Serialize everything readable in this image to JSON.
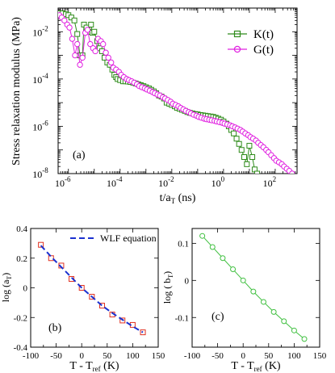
{
  "chart_data": [
    {
      "type": "scatter",
      "panel_label": "(a)",
      "xlabel_main": "t/a",
      "xlabel_sub": "T",
      "xlabel_unit": " (ns)",
      "ylabel": "Stress relaxation modulus (MPa)",
      "xscale": "log",
      "yscale": "log",
      "xlim": [
        4e-07,
        700
      ],
      "ylim": [
        1e-08,
        0.1
      ],
      "xticks": [
        1e-06,
        0.0001,
        0.01,
        1,
        100
      ],
      "xtick_base": [
        "10",
        "10",
        "10",
        "10",
        "10"
      ],
      "xtick_exp": [
        "-6",
        "-4",
        "-2",
        "0",
        "2"
      ],
      "yticks": [
        1e-08,
        1e-06,
        0.0001,
        0.01
      ],
      "ytick_base": [
        "10",
        "10",
        "10",
        "10"
      ],
      "ytick_exp": [
        "-8",
        "-6",
        "-4",
        "-2"
      ],
      "legend_position": "top-right",
      "series": [
        {
          "name": "K(t)",
          "color": "#2e8b1a",
          "marker": "square",
          "x": [
            4.5e-07,
            6e-07,
            8e-07,
            1e-06,
            1.3e-06,
            1.7e-06,
            2.2e-06,
            2.8e-06,
            3.5e-06,
            4e-06,
            5e-06,
            6e-06,
            7.5e-06,
            8.5e-06,
            1e-05,
            1.3e-05,
            1.6e-05,
            2e-05,
            2.5e-05,
            3.2e-05,
            4e-05,
            5e-05,
            6e-05,
            7e-05,
            8e-05,
            0.0001,
            0.00013,
            0.00016,
            0.0002,
            0.00025,
            0.00032,
            0.0004,
            0.0005,
            0.00063,
            0.0008,
            0.001,
            0.0013,
            0.0016,
            0.002,
            0.0025,
            0.0032,
            0.004,
            0.005,
            0.0063,
            0.008,
            0.01,
            0.013,
            0.016,
            0.02,
            0.025,
            0.032,
            0.04,
            0.05,
            0.063,
            0.08,
            0.1,
            0.13,
            0.16,
            0.2,
            0.25,
            0.32,
            0.4,
            0.5,
            0.63,
            0.8,
            1,
            1.3,
            1.6,
            2,
            2.5,
            3.2,
            4,
            5,
            6.3,
            8,
            10,
            13,
            16,
            20
          ],
          "y": [
            0.06,
            0.06,
            0.055,
            0.05,
            0.04,
            0.03,
            0.008,
            0.001,
            0.001,
            0.02,
            0.015,
            0.01,
            0.02,
            0.009,
            0.01,
            0.004,
            0.002,
            0.0015,
            0.0008,
            0.0005,
            0.0004,
            0.00025,
            0.00015,
            0.00012,
            0.0001,
            9e-05,
            8e-05,
            8e-05,
            7.8e-05,
            7.5e-05,
            7e-05,
            6.5e-05,
            6e-05,
            5.5e-05,
            5e-05,
            4.5e-05,
            4e-05,
            3.5e-05,
            3e-05,
            2.5e-05,
            2e-05,
            1.8e-05,
            1.5e-05,
            1e-05,
            9e-06,
            8e-06,
            7e-06,
            6e-06,
            5.5e-06,
            5e-06,
            4.5e-06,
            4e-06,
            3.7e-06,
            3.5e-06,
            3.3e-06,
            3.2e-06,
            3e-06,
            2.9e-06,
            2.8e-06,
            2.7e-06,
            2.6e-06,
            2.5e-06,
            2.3e-06,
            2.1e-06,
            1.9e-06,
            1.6e-06,
            1.3e-06,
            1e-06,
            7e-07,
            5e-07,
            3e-07,
            1.8e-07,
            1e-07,
            5e-08,
            2.5e-08,
            1.5e-07,
            5e-08,
            1.5e-08,
            1e-08
          ]
        },
        {
          "name": "G(t)",
          "color": "#e020e0",
          "marker": "circle",
          "x": [
            4.5e-07,
            5.5e-07,
            7e-07,
            9e-07,
            1.1e-06,
            1.4e-06,
            1.8e-06,
            2.2e-06,
            2.8e-06,
            3.5e-06,
            4.5e-06,
            5.5e-06,
            7e-06,
            9e-06,
            1.1e-05,
            1.4e-05,
            1.8e-05,
            2.2e-05,
            2.8e-05,
            3.5e-05,
            4.5e-05,
            5.5e-05,
            7e-05,
            9e-05,
            0.00011,
            0.00014,
            0.00018,
            0.00022,
            0.00028,
            0.00035,
            0.00045,
            0.00055,
            0.0007,
            0.0009,
            0.0011,
            0.0014,
            0.0018,
            0.0022,
            0.0028,
            0.0035,
            0.0045,
            0.0055,
            0.007,
            0.009,
            0.011,
            0.014,
            0.018,
            0.022,
            0.028,
            0.035,
            0.045,
            0.055,
            0.07,
            0.09,
            0.11,
            0.14,
            0.18,
            0.22,
            0.28,
            0.35,
            0.45,
            0.55,
            0.7,
            0.9,
            1.1,
            1.4,
            1.8,
            2.2,
            2.8,
            3.5,
            4.5,
            5.5,
            7,
            9,
            11,
            14,
            18,
            22,
            28,
            35,
            45,
            55,
            70,
            90,
            110,
            140,
            180,
            220,
            280,
            350,
            450
          ],
          "y": [
            0.05,
            0.04,
            0.03,
            0.02,
            0.015,
            0.005,
            0.001,
            0.003,
            0.0004,
            0.0008,
            0.009,
            0.012,
            0.003,
            0.002,
            0.0015,
            0.005,
            0.004,
            0.003,
            0.0013,
            0.0008,
            0.0005,
            0.0003,
            0.00025,
            0.0002,
            0.00015,
            0.00012,
            0.0001,
            9e-05,
            8e-05,
            7e-05,
            6e-05,
            5e-05,
            4.5e-05,
            4e-05,
            3.6e-05,
            3.2e-05,
            2.8e-05,
            2.5e-05,
            2.2e-05,
            2e-05,
            1.7e-05,
            1.5e-05,
            1.3e-05,
            1.1e-05,
            9e-06,
            8e-06,
            7e-06,
            6e-06,
            5.2e-06,
            4.5e-06,
            4e-06,
            3.5e-06,
            3.1e-06,
            2.8e-06,
            2.5e-06,
            2.3e-06,
            2.1e-06,
            2e-06,
            1.9e-06,
            1.8e-06,
            1.7e-06,
            1.6e-06,
            1.5e-06,
            1.4e-06,
            1.3e-06,
            1.2e-06,
            1.1e-06,
            1e-06,
            9e-07,
            8e-07,
            7e-07,
            6e-07,
            5e-07,
            4.2e-07,
            3.5e-07,
            3e-07,
            2.5e-07,
            2e-07,
            1.6e-07,
            1.3e-07,
            1e-07,
            8e-08,
            6e-08,
            4.5e-08,
            3.5e-08,
            3e-08,
            2.5e-08,
            2e-08,
            1.6e-08,
            1.3e-08,
            1e-08
          ]
        }
      ]
    },
    {
      "type": "scatter",
      "panel_label": "(b)",
      "xlabel_main": "T - T",
      "xlabel_sub": "ref",
      "xlabel_unit": " (K)",
      "ylabel_main": "log (a",
      "ylabel_sub": "T",
      "ylabel_end": ")",
      "xlim": [
        -100,
        150
      ],
      "ylim": [
        -0.4,
        0.4
      ],
      "xticks": [
        -100,
        -50,
        0,
        50,
        100,
        150
      ],
      "xtick_labels": [
        "-100",
        "-50",
        "0",
        "50",
        "100",
        "150"
      ],
      "yticks": [
        -0.4,
        -0.2,
        0,
        0.2,
        0.4
      ],
      "ytick_labels": [
        "-0.4",
        "-0.2",
        "0",
        "0.2",
        "0.4"
      ],
      "legend_position": "top-right",
      "series": [
        {
          "name": "",
          "color": "#e03020",
          "marker": "square",
          "x": [
            -80,
            -60,
            -40,
            -20,
            0,
            20,
            40,
            60,
            80,
            100,
            120
          ],
          "y": [
            0.29,
            0.2,
            0.15,
            0.06,
            0.0,
            -0.06,
            -0.12,
            -0.18,
            -0.22,
            -0.25,
            -0.3
          ]
        },
        {
          "name": "WLF equation",
          "color": "#1a30d0",
          "style": "dashed",
          "x": [
            -80,
            -60,
            -40,
            -20,
            0,
            20,
            40,
            60,
            80,
            100,
            120
          ],
          "y": [
            0.285,
            0.21,
            0.14,
            0.07,
            0.0,
            -0.06,
            -0.12,
            -0.17,
            -0.215,
            -0.26,
            -0.3
          ]
        }
      ]
    },
    {
      "type": "line",
      "panel_label": "(c)",
      "xlabel_main": "T - T",
      "xlabel_sub": "ref",
      "xlabel_unit": " (K)",
      "ylabel_main": "log ( b",
      "ylabel_sub": "T",
      "ylabel_end": ")",
      "xlim": [
        -100,
        150
      ],
      "ylim": [
        -0.18,
        0.14
      ],
      "xticks": [
        -100,
        -50,
        0,
        50,
        100,
        150
      ],
      "xtick_labels": [
        "-100",
        "-50",
        "0",
        "50",
        "100",
        "150"
      ],
      "yticks": [
        -0.1,
        0,
        0.1
      ],
      "ytick_labels": [
        "-0.1",
        "0",
        "0.1"
      ],
      "series": [
        {
          "name": "",
          "color": "#40c040",
          "marker": "circle",
          "x": [
            -80,
            -60,
            -40,
            -20,
            0,
            20,
            40,
            60,
            80,
            100,
            120
          ],
          "y": [
            0.12,
            0.09,
            0.06,
            0.03,
            0.0,
            -0.03,
            -0.058,
            -0.085,
            -0.11,
            -0.135,
            -0.158
          ]
        }
      ]
    }
  ]
}
